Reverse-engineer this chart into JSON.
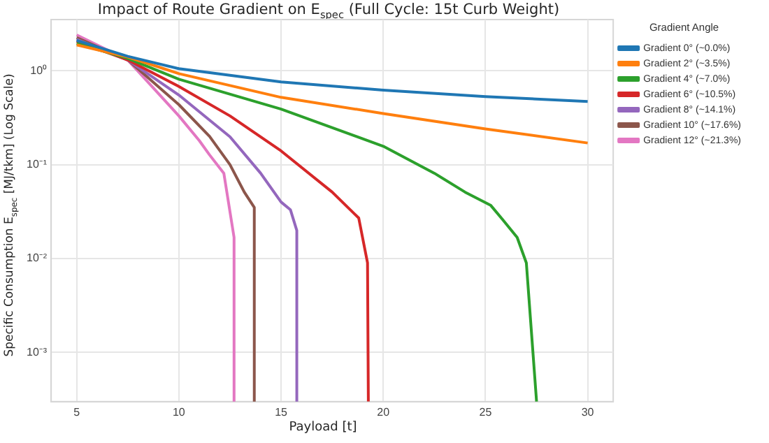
{
  "chart_data": {
    "type": "line",
    "title": "Impact of Route Gradient on E$_{spec}$ (Full Cycle: 15t Curb Weight)",
    "xlabel": "Payload [t]",
    "ylabel": "Specific Consumption E$_{spec}$ [MJ/tkm] (Log Scale)",
    "legend_title": "Gradient Angle",
    "xlim": [
      3.75,
      31.25
    ],
    "xticks": [
      5,
      10,
      15,
      20,
      25,
      30
    ],
    "ylim": [
      0.0003,
      3.5
    ],
    "yticks": [
      {
        "value": 0.001,
        "label": "10⁻³"
      },
      {
        "value": 0.01,
        "label": "10⁻²"
      },
      {
        "value": 0.1,
        "label": "10⁻¹"
      },
      {
        "value": 1,
        "label": "10⁰"
      }
    ],
    "log": "y",
    "grid": true,
    "legend": "right",
    "marker": "none",
    "line_style": "solid",
    "series": [
      {
        "name": "Gradient 0° (~0.0%)",
        "color": "#1f77b4",
        "x": [
          5,
          7.5,
          10,
          15,
          20,
          25,
          30
        ],
        "values": [
          2.1,
          1.42,
          1.05,
          0.76,
          0.62,
          0.53,
          0.47
        ]
      },
      {
        "name": "Gradient 2° (~3.5%)",
        "color": "#ff7f0e",
        "x": [
          5,
          7.5,
          10,
          15,
          20,
          25,
          30
        ],
        "values": [
          1.88,
          1.4,
          0.93,
          0.52,
          0.35,
          0.24,
          0.17
        ]
      },
      {
        "name": "Gradient 4° (~7.0%)",
        "color": "#2ca02c",
        "x": [
          5,
          7.5,
          10,
          15,
          20,
          22.5,
          24,
          25.25,
          25.84,
          26.55,
          27,
          27.5
        ],
        "values": [
          1.95,
          1.35,
          0.81,
          0.39,
          0.157,
          0.081,
          0.051,
          0.037,
          0.026,
          0.0168,
          0.009,
          0.0003
        ]
      },
      {
        "name": "Gradient 6° (~10.5%)",
        "color": "#d62728",
        "x": [
          5,
          7.5,
          10,
          12.5,
          15,
          17.5,
          18.8,
          19.23,
          19.27
        ],
        "values": [
          2.05,
          1.3,
          0.68,
          0.33,
          0.14,
          0.051,
          0.027,
          0.009,
          0.0003
        ]
      },
      {
        "name": "Gradient 8° (~14.1%)",
        "color": "#9467bd",
        "x": [
          5,
          7.5,
          10,
          12.5,
          14,
          15,
          15.46,
          15.77,
          15.77
        ],
        "values": [
          2.15,
          1.3,
          0.55,
          0.198,
          0.081,
          0.04,
          0.033,
          0.0199,
          0.0003
        ]
      },
      {
        "name": "Gradient 10° (~17.6%)",
        "color": "#8c564b",
        "x": [
          5,
          7.5,
          10,
          11.5,
          12.5,
          13.2,
          13.69,
          13.69
        ],
        "values": [
          2.25,
          1.3,
          0.435,
          0.2,
          0.1,
          0.051,
          0.035,
          0.0003
        ]
      },
      {
        "name": "Gradient 12° (~21.3%)",
        "color": "#e377c2",
        "x": [
          5,
          7.5,
          10,
          11,
          11.5,
          12.2,
          12.7,
          12.7
        ],
        "values": [
          2.4,
          1.3,
          0.33,
          0.18,
          0.127,
          0.081,
          0.0168,
          0.0003
        ]
      }
    ]
  }
}
